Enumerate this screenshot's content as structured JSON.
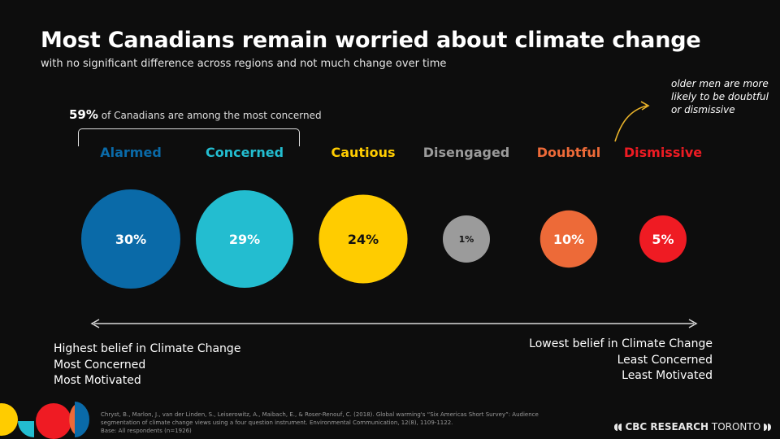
{
  "header": {
    "title": "Most Canadians remain worried about climate change",
    "subtitle": "with no significant difference across regions and not much change over time"
  },
  "concern_note": {
    "pct": "59%",
    "text": " of Canadians are among the most concerned"
  },
  "annotation": {
    "text": "older men are more likely to be doubtful or dismissive",
    "color": "#e8b22a"
  },
  "chart_data": {
    "type": "bubble",
    "categories": [
      "Alarmed",
      "Concerned",
      "Cautious",
      "Disengaged",
      "Doubtful",
      "Dismissive"
    ],
    "values": [
      30,
      29,
      24,
      1,
      10,
      5
    ],
    "value_labels": [
      "30%",
      "29%",
      "24%",
      "1%",
      "10%",
      "5%"
    ],
    "colors": [
      "#0a6aa8",
      "#23bdd0",
      "#ffcc00",
      "#9b9b9b",
      "#ed6a38",
      "#ef1b23"
    ],
    "label_colors": [
      "#ffffff",
      "#ffffff",
      "#111111",
      "#111111",
      "#ffffff",
      "#ffffff"
    ]
  },
  "scale": {
    "left": [
      "Highest belief in Climate Change",
      "Most Concerned",
      "Most Motivated"
    ],
    "right": [
      "Lowest belief in Climate Change",
      "Least Concerned",
      "Least Motivated"
    ]
  },
  "source": {
    "citation": "Chryst, B., Marlon, J., van der Linden, S., Leiserowitz, A., Maibach, E., & Roser-Renouf, C. (2018). Global warming's “Six Americas Short Survey”: Audience segmentation of climate change views using a four question instrument. Environmental Communication, 12(8), 1109-1122.",
    "base": "Base: All respondents (n=1926)"
  },
  "brand": {
    "name_bold": "CBC RESEARCH",
    "name_light": "TORONTO"
  }
}
